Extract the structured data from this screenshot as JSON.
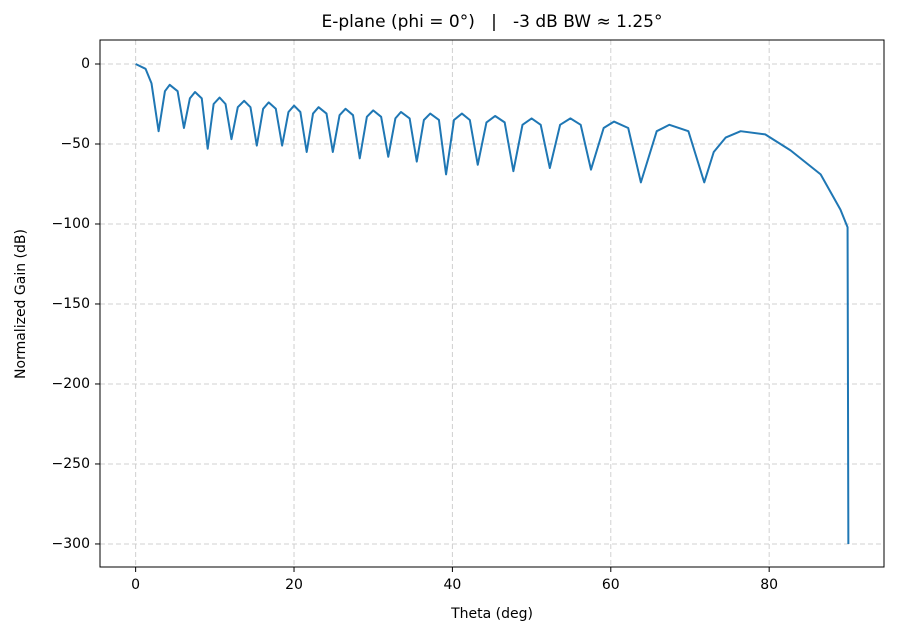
{
  "chart_data": {
    "type": "line",
    "title": "E-plane (phi = 0°)   |   -3 dB BW ≈ 1.25°",
    "x_label": "Theta (deg)",
    "y_label": "Normalized Gain (dB)",
    "x": [
      0,
      1.25,
      2,
      2.9,
      3.7,
      4.3,
      5.3,
      6.1,
      6.85,
      7.5,
      8.35,
      9.1,
      9.85,
      10.6,
      11.35,
      12.1,
      12.9,
      13.7,
      14.5,
      15.3,
      16.1,
      16.8,
      17.7,
      18.5,
      19.3,
      20,
      20.8,
      21.6,
      22.4,
      23.1,
      24.1,
      24.9,
      25.75,
      26.5,
      27.45,
      28.3,
      29.2,
      30,
      31,
      31.9,
      32.8,
      33.5,
      34.6,
      35.5,
      36.4,
      37.2,
      38.3,
      39.2,
      40.2,
      41.2,
      42.2,
      43.2,
      44.3,
      45.4,
      46.6,
      47.7,
      48.85,
      50,
      51.15,
      52.3,
      53.6,
      54.9,
      56.2,
      57.5,
      59.1,
      60.4,
      62.2,
      63.8,
      65.8,
      67.4,
      69.8,
      71.8,
      73,
      74.5,
      76.4,
      79.5,
      82.7,
      86.5,
      89,
      89.9,
      90
    ],
    "series": [
      {
        "color": "#1f77b4",
        "values": [
          0,
          -3,
          -12,
          -42,
          -17,
          -13,
          -17,
          -40,
          -21.5,
          -17.5,
          -21.5,
          -53,
          -25,
          -21,
          -25,
          -47,
          -27,
          -23,
          -27,
          -51,
          -28,
          -24,
          -28,
          -51,
          -30,
          -26,
          -30,
          -55,
          -31,
          -27,
          -31,
          -55,
          -32,
          -28,
          -32,
          -59,
          -33,
          -29,
          -33,
          -58,
          -34,
          -30,
          -34,
          -61,
          -35,
          -31,
          -35,
          -69,
          -35,
          -31,
          -35,
          -63,
          -36.5,
          -32.5,
          -36.5,
          -67,
          -38,
          -34,
          -38,
          -65,
          -38,
          -34,
          -38,
          -66,
          -40,
          -36,
          -40,
          -74,
          -42,
          -38,
          -42,
          -74,
          -55,
          -46,
          -42,
          -44,
          -54,
          -69,
          -91,
          -102,
          -300
        ]
      }
    ],
    "xlim": [
      -4.5,
      94.5
    ],
    "ylim": [
      -314.4,
      15
    ],
    "xticks": [
      0,
      20,
      40,
      60,
      80
    ],
    "yticks": [
      {
        "value": -300,
        "label": "−300"
      },
      {
        "value": -250,
        "label": "−250"
      },
      {
        "value": -200,
        "label": "−200"
      },
      {
        "value": -150,
        "label": "−150"
      },
      {
        "value": -100,
        "label": "−100"
      },
      {
        "value": -50,
        "label": "−50"
      },
      0
    ],
    "grid": true
  }
}
